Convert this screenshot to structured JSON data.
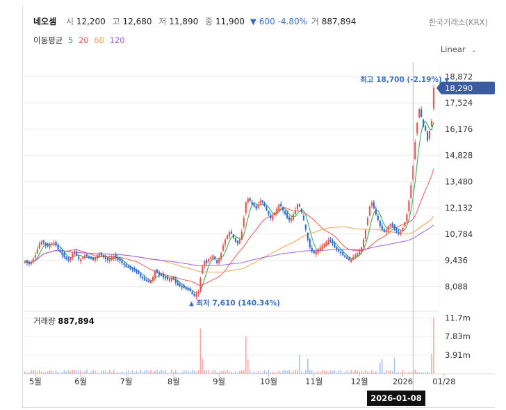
{
  "header": {
    "name": "네오셈",
    "open_label": "시",
    "open": "12,200",
    "high_label": "고",
    "high": "12,680",
    "low_label": "저",
    "low": "11,890",
    "close_label": "종",
    "close": "11,900",
    "change_arrow": "▼",
    "change": "600",
    "change_pct": "-4.80%",
    "volume_label": "거",
    "volume": "887,894"
  },
  "exchange": "한국거래소(KRX)",
  "ma": {
    "label": "이동평균",
    "periods": [
      "5",
      "20",
      "60",
      "120"
    ],
    "colors": [
      "#2e9e3c",
      "#e8554e",
      "#f0a04b",
      "#9b5de5"
    ]
  },
  "scale_mode": "Linear",
  "annotations": {
    "max_label": "최고 18,700 (-2.19%)",
    "max_arrow": "▼",
    "min_label": "최저 7,610 (140.34%)",
    "min_arrow": "▲",
    "current_price": "18,290"
  },
  "volume_panel": {
    "title": "거래량",
    "value": "887,894",
    "ticks": [
      "11.7m",
      "7.83m",
      "3.91m"
    ]
  },
  "crosshair_date": "2026-01-08",
  "colors": {
    "up": "#e8554e",
    "down": "#2f6bd1",
    "accent": "#3a6fc4",
    "price_tag": "#3a5ba0"
  },
  "chart_data": {
    "type": "candlestick",
    "y_ticks": [
      "18,872",
      "17,524",
      "16,176",
      "14,828",
      "13,480",
      "12,132",
      "10,784",
      "9,436",
      "8,088"
    ],
    "ylim": [
      7100,
      19600
    ],
    "x_ticks": [
      "5월",
      "6월",
      "7월",
      "8월",
      "9월",
      "10월",
      "11월",
      "12월",
      "2026",
      "01/28"
    ],
    "x_tick_index": [
      5,
      27,
      49,
      72,
      94,
      118,
      140,
      162,
      183,
      203
    ],
    "close_series": [
      9400,
      9300,
      9250,
      9350,
      9500,
      9700,
      10000,
      10300,
      10400,
      10350,
      10200,
      10150,
      10250,
      10300,
      10350,
      10200,
      10000,
      9850,
      9700,
      9600,
      9500,
      9450,
      9600,
      9800,
      9900,
      9700,
      9500,
      9500,
      9600,
      9700,
      9650,
      9550,
      9500,
      9450,
      9600,
      9700,
      9800,
      9700,
      9600,
      9500,
      9450,
      9550,
      9600,
      9650,
      9550,
      9450,
      9400,
      9300,
      9200,
      9100,
      9050,
      9000,
      8950,
      8900,
      8800,
      8750,
      8600,
      8500,
      8400,
      8350,
      8300,
      8400,
      8600,
      8900,
      8800,
      8700,
      8650,
      8550,
      8500,
      8450,
      8500,
      8550,
      8450,
      8300,
      8150,
      8100,
      8050,
      8000,
      7950,
      7900,
      7850,
      7700,
      7610,
      7700,
      7800,
      8500,
      9100,
      9400,
      9300,
      9500,
      9600,
      9700,
      9500,
      9300,
      9500,
      9800,
      10200,
      10500,
      10700,
      10900,
      10800,
      10600,
      10400,
      10300,
      10500,
      10900,
      11600,
      12400,
      12600,
      12500,
      12300,
      12200,
      12100,
      12300,
      12500,
      12400,
      12200,
      12000,
      11800,
      11600,
      11700,
      11900,
      12100,
      12300,
      12200,
      12000,
      11800,
      11600,
      11500,
      11600,
      11800,
      12000,
      12300,
      12200,
      11900,
      11500,
      11000,
      10500,
      10100,
      9900,
      9800,
      9900,
      10000,
      10100,
      10200,
      10300,
      10400,
      10500,
      10400,
      10300,
      10100,
      10000,
      9900,
      9800,
      9700,
      9600,
      9500,
      9450,
      9500,
      9600,
      9700,
      9800,
      9900,
      10100,
      10500,
      11000,
      11600,
      12200,
      12400,
      12100,
      11800,
      11500,
      11200,
      11000,
      10900,
      11000,
      11200,
      11300,
      11200,
      11000,
      10900,
      10800,
      10900,
      11100,
      11400,
      11800,
      12500,
      13300,
      14300,
      15500,
      16500,
      17200,
      16800,
      16300,
      16100,
      15600,
      16100,
      16600,
      18290
    ],
    "volume_labels": {
      "max": "11.7m"
    }
  }
}
